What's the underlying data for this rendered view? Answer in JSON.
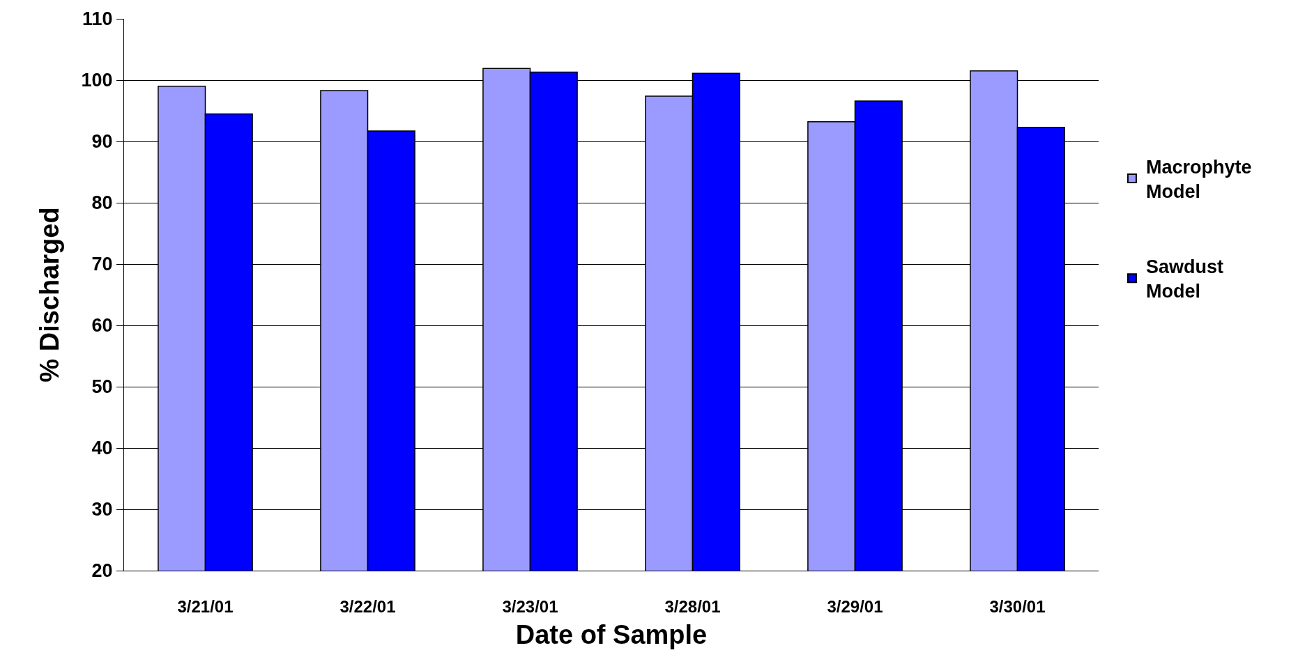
{
  "chart_data": {
    "type": "bar",
    "xlabel": "Date of Sample",
    "ylabel": "% Discharged",
    "categories": [
      "3/21/01",
      "3/22/01",
      "3/23/01",
      "3/28/01",
      "3/29/01",
      "3/30/01"
    ],
    "series": [
      {
        "name": "Macrophyte Model",
        "color": "#9a9aff",
        "values": [
          99.0,
          98.3,
          101.9,
          97.4,
          93.2,
          101.5
        ]
      },
      {
        "name": "Sawdust Model",
        "color": "#0000ff",
        "values": [
          94.5,
          91.7,
          101.3,
          101.1,
          96.6,
          92.3
        ]
      }
    ],
    "ylim": [
      20,
      110
    ],
    "yticks": [
      20,
      30,
      40,
      50,
      60,
      70,
      80,
      90,
      100,
      110
    ],
    "grid": "y",
    "legend": "right"
  }
}
